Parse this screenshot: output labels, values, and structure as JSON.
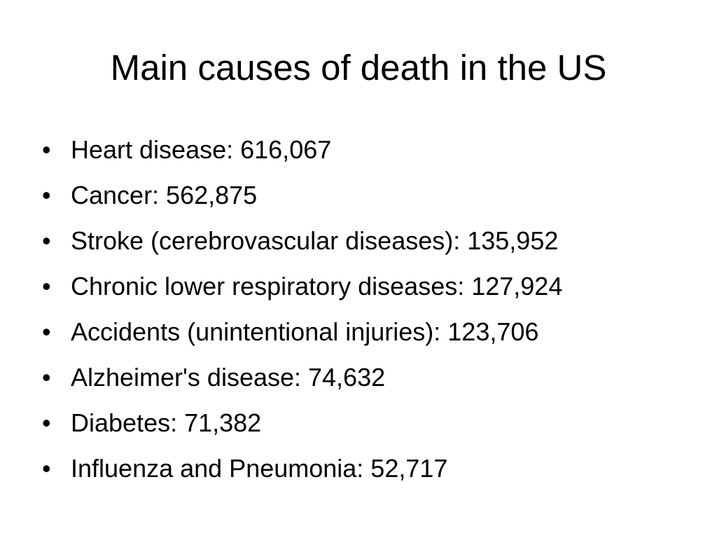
{
  "slide": {
    "title": "Main causes of death in the US",
    "bullet_glyph": "•",
    "items": [
      {
        "text": "Heart disease: 616,067"
      },
      {
        "text": "Cancer: 562,875"
      },
      {
        "text": "Stroke (cerebrovascular diseases): 135,952"
      },
      {
        "text": "Chronic lower respiratory diseases: 127,924"
      },
      {
        "text": "Accidents (unintentional injuries): 123,706"
      },
      {
        "text": "Alzheimer's disease: 74,632"
      },
      {
        "text": "Diabetes: 71,382"
      },
      {
        "text": "Influenza and Pneumonia: 52,717"
      }
    ]
  }
}
